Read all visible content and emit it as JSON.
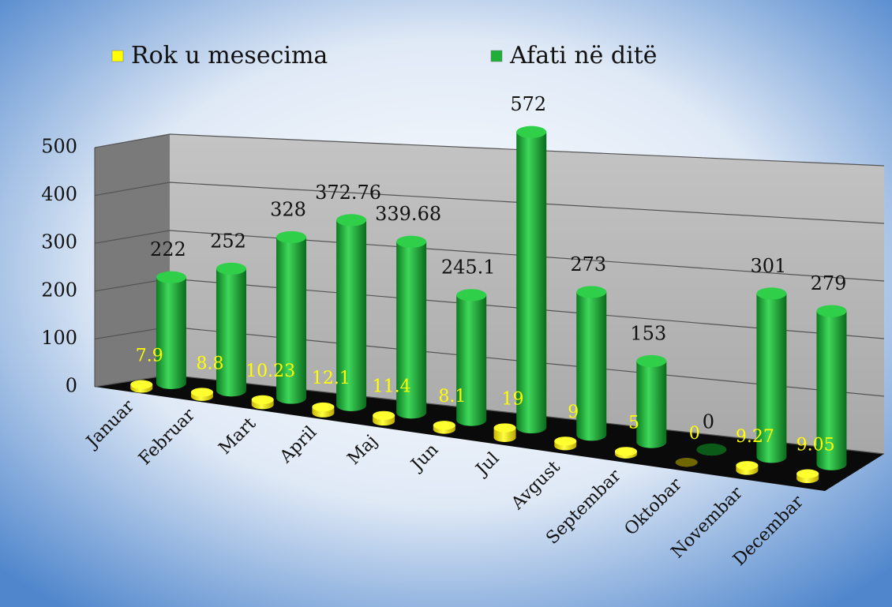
{
  "chart_data": {
    "type": "bar3d",
    "categories": [
      "Januar",
      "Februar",
      "Mart",
      "April",
      "Maj",
      "Jun",
      "Jul",
      "Avgust",
      "Septembar",
      "Oktobar",
      "Novembar",
      "Decembar"
    ],
    "series": [
      {
        "name": "Rok u mesecima",
        "color": "#ffff00",
        "values": [
          7.9,
          8.8,
          10.23,
          12.1,
          11.4,
          8.1,
          19,
          9,
          5,
          0,
          9.27,
          9.05
        ]
      },
      {
        "name": "Afati në ditë",
        "color": "#1fae3a",
        "values": [
          222,
          252,
          328,
          372.76,
          339.68,
          245.1,
          572,
          273,
          153,
          0,
          301,
          279
        ]
      }
    ],
    "ylim": [
      0,
      500
    ],
    "yticks": [
      0,
      100,
      200,
      300,
      400,
      500
    ],
    "grid": true
  }
}
